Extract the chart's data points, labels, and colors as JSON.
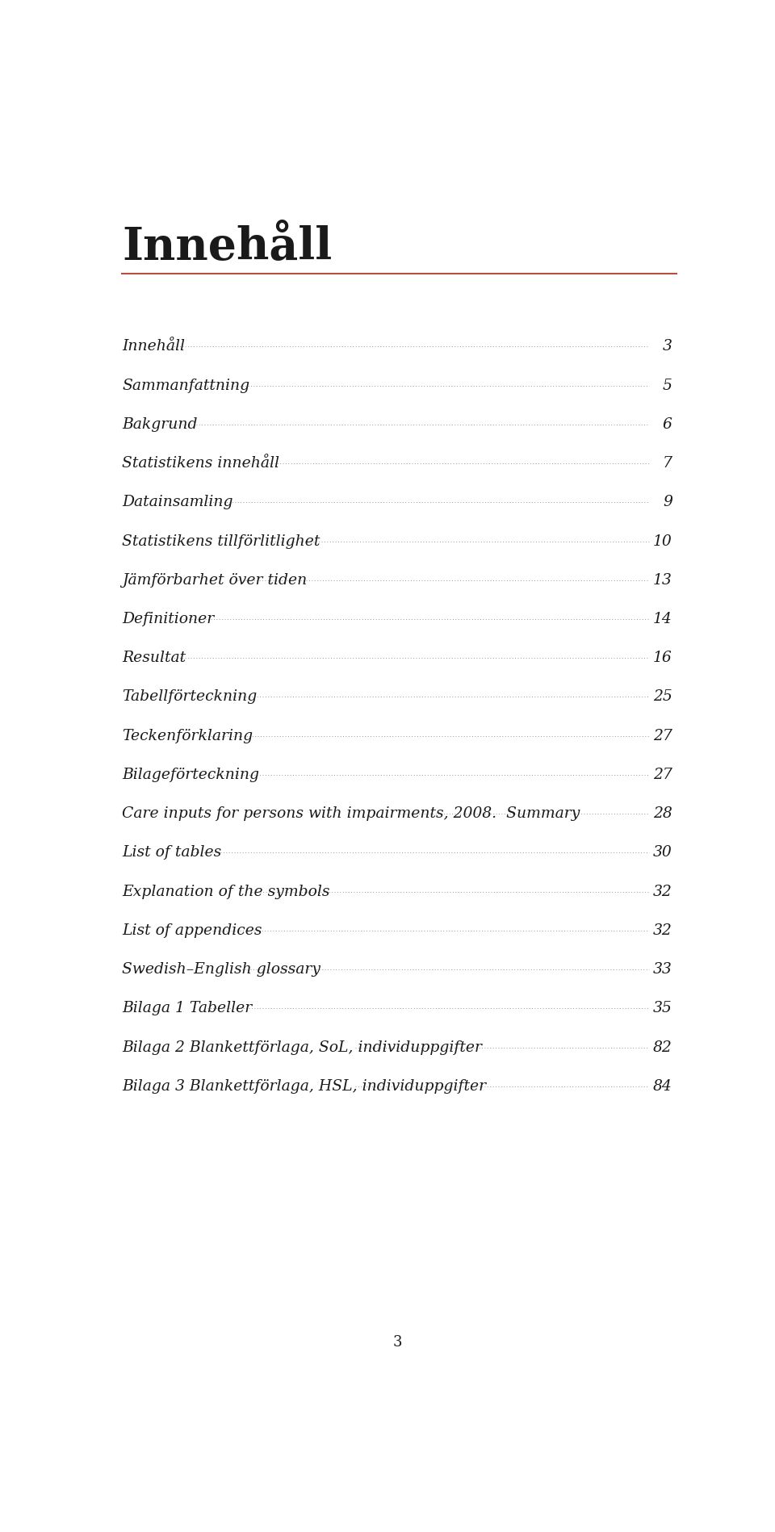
{
  "title": "Innehåll",
  "title_color": "#1a1a1a",
  "line_color": "#b05040",
  "bg_color": "#ffffff",
  "page_number": "3",
  "entries": [
    {
      "text": "Innehåll",
      "page": "3"
    },
    {
      "text": "Sammanfattning",
      "page": "5"
    },
    {
      "text": "Bakgrund",
      "page": "6"
    },
    {
      "text": "Statistikens innehåll",
      "page": "7"
    },
    {
      "text": "Datainsamling",
      "page": "9"
    },
    {
      "text": "Statistikens tillförlitlighet",
      "page": "10"
    },
    {
      "text": "Jämförbarhet över tiden",
      "page": "13"
    },
    {
      "text": "Definitioner",
      "page": "14"
    },
    {
      "text": "Resultat",
      "page": "16"
    },
    {
      "text": "Tabellförteckning",
      "page": "25"
    },
    {
      "text": "Teckenförklaring",
      "page": "27"
    },
    {
      "text": "Bilageförteckning",
      "page": "27"
    },
    {
      "text": "Care inputs for persons with impairments, 2008.  Summary",
      "page": "28"
    },
    {
      "text": "List of tables",
      "page": "30"
    },
    {
      "text": "Explanation of the symbols",
      "page": "32"
    },
    {
      "text": "List of appendices",
      "page": "32"
    },
    {
      "text": "Swedish–English glossary",
      "page": "33"
    },
    {
      "text": "Bilaga 1 Tabeller",
      "page": "35"
    },
    {
      "text": "Bilaga 2 Blankettförlaga, SoL, individuppgifter",
      "page": "82"
    },
    {
      "text": "Bilaga 3 Blankettförlaga, HSL, individuppgifter",
      "page": "84"
    }
  ]
}
